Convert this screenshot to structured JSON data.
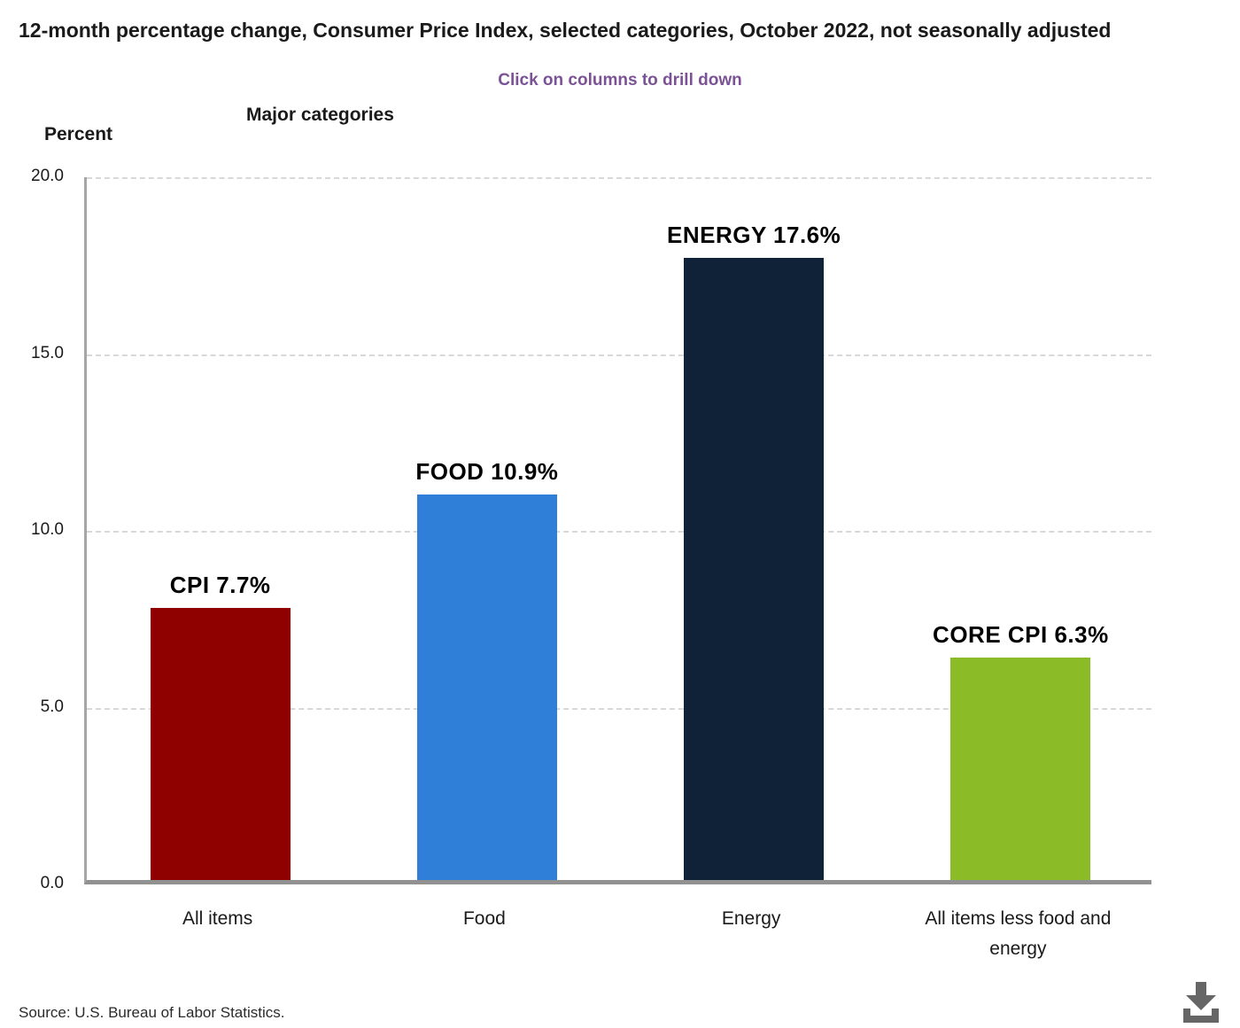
{
  "header": {
    "title": "12-month percentage change, Consumer Price Index, selected categories, October 2022, not seasonally adjusted",
    "drill_note": "Click on columns to drill down",
    "axis_group_label": "Major categories",
    "y_axis_label": "Percent"
  },
  "chart_data": {
    "type": "bar",
    "title": "12-month percentage change, Consumer Price Index, selected categories, October 2022, not seasonally adjusted",
    "xlabel": "Major categories",
    "ylabel": "Percent",
    "ylim": [
      0,
      20
    ],
    "ytick_step": 5,
    "ytick_labels": [
      "20.0",
      "15.0",
      "10.0",
      "5.0",
      "0.0"
    ],
    "grid": "horizontal-dashed",
    "legend": "none",
    "categories": [
      "All items",
      "Food",
      "Energy",
      "All items less food and energy"
    ],
    "values": [
      7.7,
      10.9,
      17.6,
      6.3
    ],
    "bar_labels": [
      "CPI 7.7%",
      "FOOD 10.9%",
      "ENERGY 17.6%",
      "CORE CPI 6.3%"
    ],
    "bar_colors": [
      "#8f0000",
      "#2f7fd9",
      "#102238",
      "#8bbb26"
    ]
  },
  "footer": {
    "source": "Source: U.S. Bureau of Labor Statistics."
  },
  "colors": {
    "drill_note_text": "#7b5295",
    "title_text": "#1a1a1a",
    "gridline": "#d8d8d8",
    "y_axis_line": "#a6a6a6",
    "x_axis_line": "#919191",
    "download_icon": "#666666"
  }
}
